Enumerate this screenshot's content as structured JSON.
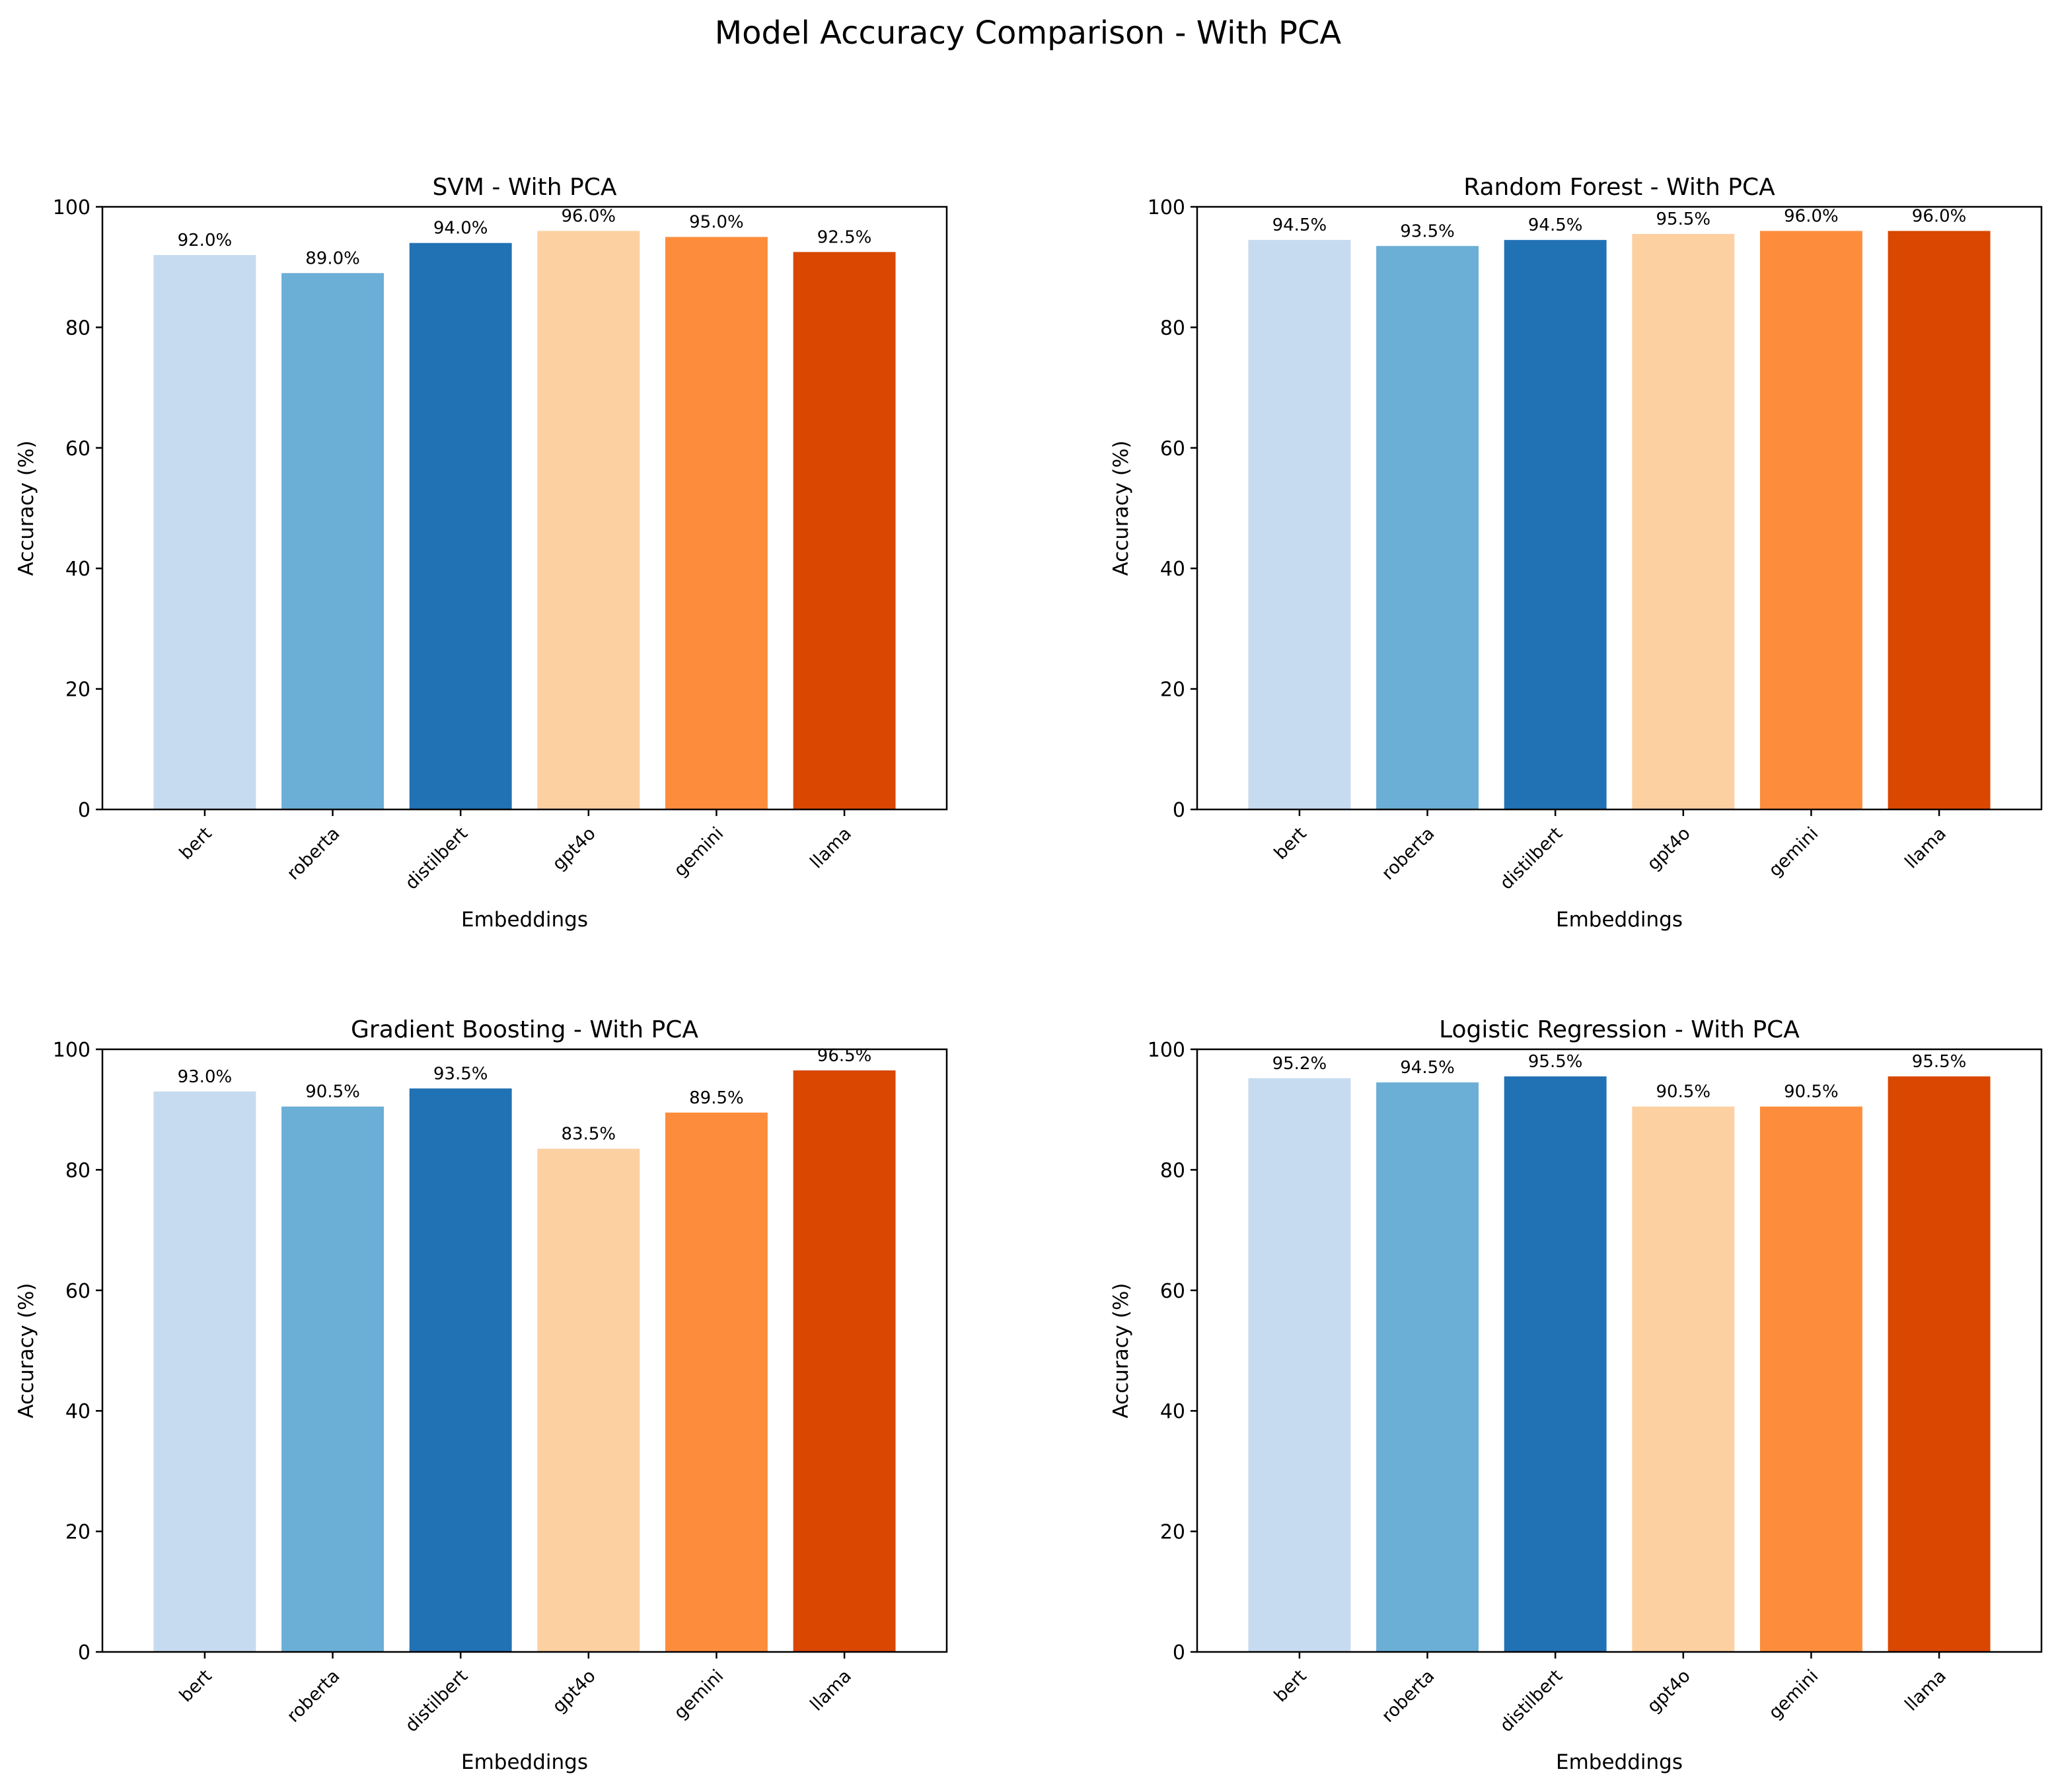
{
  "suptitle": "Model Accuracy Comparison - With PCA",
  "colors": [
    "#c6dbef",
    "#6baed6",
    "#2171b5",
    "#fdd0a2",
    "#fd8d3c",
    "#d94701"
  ],
  "chart_data": [
    {
      "type": "bar",
      "title": "SVM - With PCA",
      "xlabel": "Embeddings",
      "ylabel": "Accuracy (%)",
      "ylim": [
        0,
        100
      ],
      "yticks": [
        0,
        20,
        40,
        60,
        80,
        100
      ],
      "categories": [
        "bert",
        "roberta",
        "distilbert",
        "gpt4o",
        "gemini",
        "llama"
      ],
      "values": [
        92.0,
        89.0,
        94.0,
        96.0,
        95.0,
        92.5
      ],
      "data_labels": [
        "92.0%",
        "89.0%",
        "94.0%",
        "96.0%",
        "95.0%",
        "92.5%"
      ]
    },
    {
      "type": "bar",
      "title": "Random Forest - With PCA",
      "xlabel": "Embeddings",
      "ylabel": "Accuracy (%)",
      "ylim": [
        0,
        100
      ],
      "yticks": [
        0,
        20,
        40,
        60,
        80,
        100
      ],
      "categories": [
        "bert",
        "roberta",
        "distilbert",
        "gpt4o",
        "gemini",
        "llama"
      ],
      "values": [
        94.5,
        93.5,
        94.5,
        95.5,
        96.0,
        96.0
      ],
      "data_labels": [
        "94.5%",
        "93.5%",
        "94.5%",
        "95.5%",
        "96.0%",
        "96.0%"
      ]
    },
    {
      "type": "bar",
      "title": "Gradient Boosting - With PCA",
      "xlabel": "Embeddings",
      "ylabel": "Accuracy (%)",
      "ylim": [
        0,
        100
      ],
      "yticks": [
        0,
        20,
        40,
        60,
        80,
        100
      ],
      "categories": [
        "bert",
        "roberta",
        "distilbert",
        "gpt4o",
        "gemini",
        "llama"
      ],
      "values": [
        93.0,
        90.5,
        93.5,
        83.5,
        89.5,
        96.5
      ],
      "data_labels": [
        "93.0%",
        "90.5%",
        "93.5%",
        "83.5%",
        "89.5%",
        "96.5%"
      ]
    },
    {
      "type": "bar",
      "title": "Logistic Regression - With PCA",
      "xlabel": "Embeddings",
      "ylabel": "Accuracy (%)",
      "ylim": [
        0,
        100
      ],
      "yticks": [
        0,
        20,
        40,
        60,
        80,
        100
      ],
      "categories": [
        "bert",
        "roberta",
        "distilbert",
        "gpt4o",
        "gemini",
        "llama"
      ],
      "values": [
        95.2,
        94.5,
        95.5,
        90.5,
        90.5,
        95.5
      ],
      "data_labels": [
        "95.2%",
        "94.5%",
        "95.5%",
        "90.5%",
        "90.5%",
        "95.5%"
      ]
    }
  ]
}
